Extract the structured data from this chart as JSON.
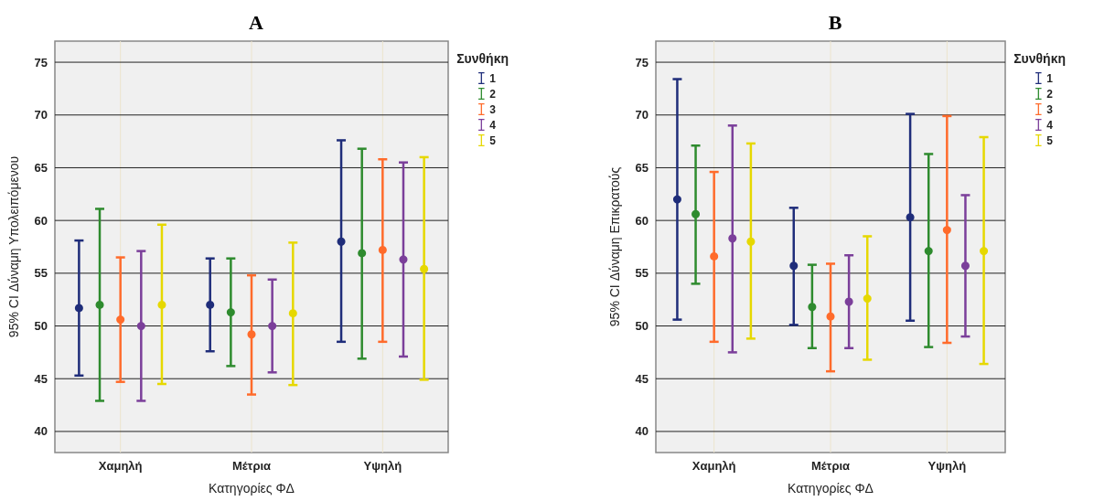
{
  "chart_data": [
    {
      "type": "scatter",
      "title": "A",
      "xlabel": "Κατηγορίες ΦΔ",
      "ylabel": "95% CI Δύναμη Υπολειπόμενου",
      "legend_title": "Συνθήκη",
      "categories": [
        "Χαμηλή",
        "Μέτρια",
        "Υψηλή"
      ],
      "ylim": [
        38,
        77
      ],
      "yticks": [
        40,
        45,
        50,
        55,
        60,
        65,
        70,
        75
      ],
      "grid": true,
      "legend": "right",
      "marker": "circle",
      "series": [
        {
          "name": "1",
          "color": "#1f2d7a",
          "values": [
            51.7,
            52,
            58
          ],
          "errors": [
            [
              45.3,
              58.1
            ],
            [
              47.6,
              56.4
            ],
            [
              48.5,
              67.6
            ]
          ]
        },
        {
          "name": "2",
          "color": "#2e8b2e",
          "values": [
            52,
            51.3,
            56.9
          ],
          "errors": [
            [
              42.9,
              61.1
            ],
            [
              46.2,
              56.4
            ],
            [
              46.9,
              66.8
            ]
          ]
        },
        {
          "name": "3",
          "color": "#ff6b2b",
          "values": [
            50.6,
            49.2,
            57.2
          ],
          "errors": [
            [
              44.7,
              56.5
            ],
            [
              43.5,
              54.8
            ],
            [
              48.5,
              65.8
            ]
          ]
        },
        {
          "name": "4",
          "color": "#7b3f9a",
          "values": [
            50,
            50,
            56.3
          ],
          "errors": [
            [
              42.9,
              57.1
            ],
            [
              45.6,
              54.4
            ],
            [
              47.1,
              65.5
            ]
          ]
        },
        {
          "name": "5",
          "color": "#e6d800",
          "values": [
            52,
            51.2,
            55.4
          ],
          "errors": [
            [
              44.5,
              59.6
            ],
            [
              44.4,
              57.9
            ],
            [
              44.9,
              66
            ]
          ]
        }
      ]
    },
    {
      "type": "scatter",
      "title": "B",
      "xlabel": "Κατηγορίες ΦΔ",
      "ylabel": "95% CI Δύναμη Επικρατούς",
      "legend_title": "Συνθήκη",
      "categories": [
        "Χαμηλή",
        "Μέτρια",
        "Υψηλή"
      ],
      "ylim": [
        38,
        77
      ],
      "yticks": [
        40,
        45,
        50,
        55,
        60,
        65,
        70,
        75
      ],
      "grid": true,
      "legend": "right",
      "marker": "circle",
      "series": [
        {
          "name": "1",
          "color": "#1f2d7a",
          "values": [
            62,
            55.7,
            60.3
          ],
          "errors": [
            [
              50.6,
              73.4
            ],
            [
              50.1,
              61.2
            ],
            [
              50.5,
              70.1
            ]
          ]
        },
        {
          "name": "2",
          "color": "#2e8b2e",
          "values": [
            60.6,
            51.8,
            57.1
          ],
          "errors": [
            [
              54,
              67.1
            ],
            [
              47.9,
              55.8
            ],
            [
              48,
              66.3
            ]
          ]
        },
        {
          "name": "3",
          "color": "#ff6b2b",
          "values": [
            56.6,
            50.9,
            59.1
          ],
          "errors": [
            [
              48.5,
              64.6
            ],
            [
              45.7,
              55.9
            ],
            [
              48.4,
              69.9
            ]
          ]
        },
        {
          "name": "4",
          "color": "#7b3f9a",
          "values": [
            58.3,
            52.3,
            55.7
          ],
          "errors": [
            [
              47.5,
              69
            ],
            [
              47.9,
              56.7
            ],
            [
              49,
              62.4
            ]
          ]
        },
        {
          "name": "5",
          "color": "#e6d800",
          "values": [
            58,
            52.6,
            57.1
          ],
          "errors": [
            [
              48.8,
              67.3
            ],
            [
              46.8,
              58.5
            ],
            [
              46.4,
              67.9
            ]
          ]
        }
      ]
    }
  ]
}
